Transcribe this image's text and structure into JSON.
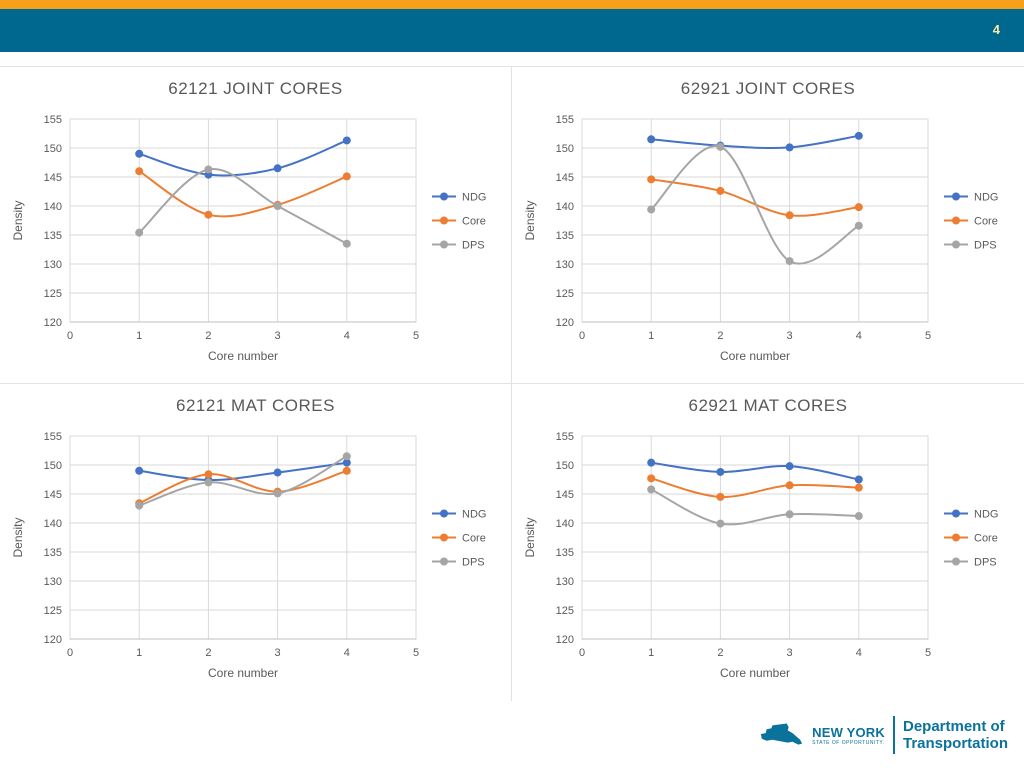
{
  "header": {
    "slide_number": "4"
  },
  "footer": {
    "logo": {
      "brand_line1": "NEW YORK",
      "brand_line2": "STATE OF OPPORTUNITY.",
      "department_line1": "Department of",
      "department_line2": "Transportation"
    }
  },
  "colors": {
    "accent_bar_orange": "#F7A11A",
    "header_teal": "#00678F",
    "logo_teal": "#0B729C",
    "series_ndg_blue": "#4472C4",
    "series_core_orange": "#ED7D31",
    "series_dps_gray": "#A5A5A5",
    "gridline_gray": "#D9D9D9",
    "axis_text_gray": "#595959"
  },
  "chart_data": [
    {
      "type": "line",
      "title": "62121 JOINT CORES",
      "xlabel": "Core number",
      "ylabel": "Density",
      "xlim": [
        0,
        5
      ],
      "ylim": [
        120,
        155
      ],
      "xticks": [
        0,
        1,
        2,
        3,
        4,
        5
      ],
      "yticks": [
        120,
        125,
        130,
        135,
        140,
        145,
        150,
        155
      ],
      "x": [
        1,
        2,
        3,
        4
      ],
      "grid": true,
      "legend_position": "right",
      "series": [
        {
          "name": "NDG",
          "color": "#4472C4",
          "values": [
            149.0,
            145.4,
            146.5,
            151.3
          ]
        },
        {
          "name": "Core",
          "color": "#ED7D31",
          "values": [
            146.0,
            138.5,
            140.2,
            145.1
          ]
        },
        {
          "name": "DPS",
          "color": "#A5A5A5",
          "values": [
            135.4,
            146.3,
            140.0,
            133.5
          ]
        }
      ]
    },
    {
      "type": "line",
      "title": "62921 JOINT CORES",
      "xlabel": "Core number",
      "ylabel": "Density",
      "xlim": [
        0,
        5
      ],
      "ylim": [
        120,
        155
      ],
      "xticks": [
        0,
        1,
        2,
        3,
        4,
        5
      ],
      "yticks": [
        120,
        125,
        130,
        135,
        140,
        145,
        150,
        155
      ],
      "x": [
        1,
        2,
        3,
        4
      ],
      "grid": true,
      "legend_position": "right",
      "series": [
        {
          "name": "NDG",
          "color": "#4472C4",
          "values": [
            151.5,
            150.4,
            150.1,
            152.1
          ]
        },
        {
          "name": "Core",
          "color": "#ED7D31",
          "values": [
            144.6,
            142.6,
            138.4,
            139.8
          ]
        },
        {
          "name": "DPS",
          "color": "#A5A5A5",
          "values": [
            139.4,
            150.2,
            130.5,
            136.6
          ]
        }
      ]
    },
    {
      "type": "line",
      "title": "62121 MAT CORES",
      "xlabel": "Core number",
      "ylabel": "Density",
      "xlim": [
        0,
        5
      ],
      "ylim": [
        120,
        155
      ],
      "xticks": [
        0,
        1,
        2,
        3,
        4,
        5
      ],
      "yticks": [
        120,
        125,
        130,
        135,
        140,
        145,
        150,
        155
      ],
      "x": [
        1,
        2,
        3,
        4
      ],
      "grid": true,
      "legend_position": "right",
      "series": [
        {
          "name": "NDG",
          "color": "#4472C4",
          "values": [
            149.0,
            147.4,
            148.7,
            150.4
          ]
        },
        {
          "name": "Core",
          "color": "#ED7D31",
          "values": [
            143.4,
            148.4,
            145.4,
            149.0
          ]
        },
        {
          "name": "DPS",
          "color": "#A5A5A5",
          "values": [
            143.0,
            147.0,
            145.1,
            151.5
          ]
        }
      ]
    },
    {
      "type": "line",
      "title": "62921 MAT CORES",
      "xlabel": "Core number",
      "ylabel": "Density",
      "xlim": [
        0,
        5
      ],
      "ylim": [
        120,
        155
      ],
      "xticks": [
        0,
        1,
        2,
        3,
        4,
        5
      ],
      "yticks": [
        120,
        125,
        130,
        135,
        140,
        145,
        150,
        155
      ],
      "x": [
        1,
        2,
        3,
        4
      ],
      "grid": true,
      "legend_position": "right",
      "series": [
        {
          "name": "NDG",
          "color": "#4472C4",
          "values": [
            150.4,
            148.8,
            149.8,
            147.5
          ]
        },
        {
          "name": "Core",
          "color": "#ED7D31",
          "values": [
            147.7,
            144.5,
            146.5,
            146.1
          ]
        },
        {
          "name": "DPS",
          "color": "#A5A5A5",
          "values": [
            145.8,
            139.9,
            141.5,
            141.2
          ]
        }
      ]
    }
  ]
}
